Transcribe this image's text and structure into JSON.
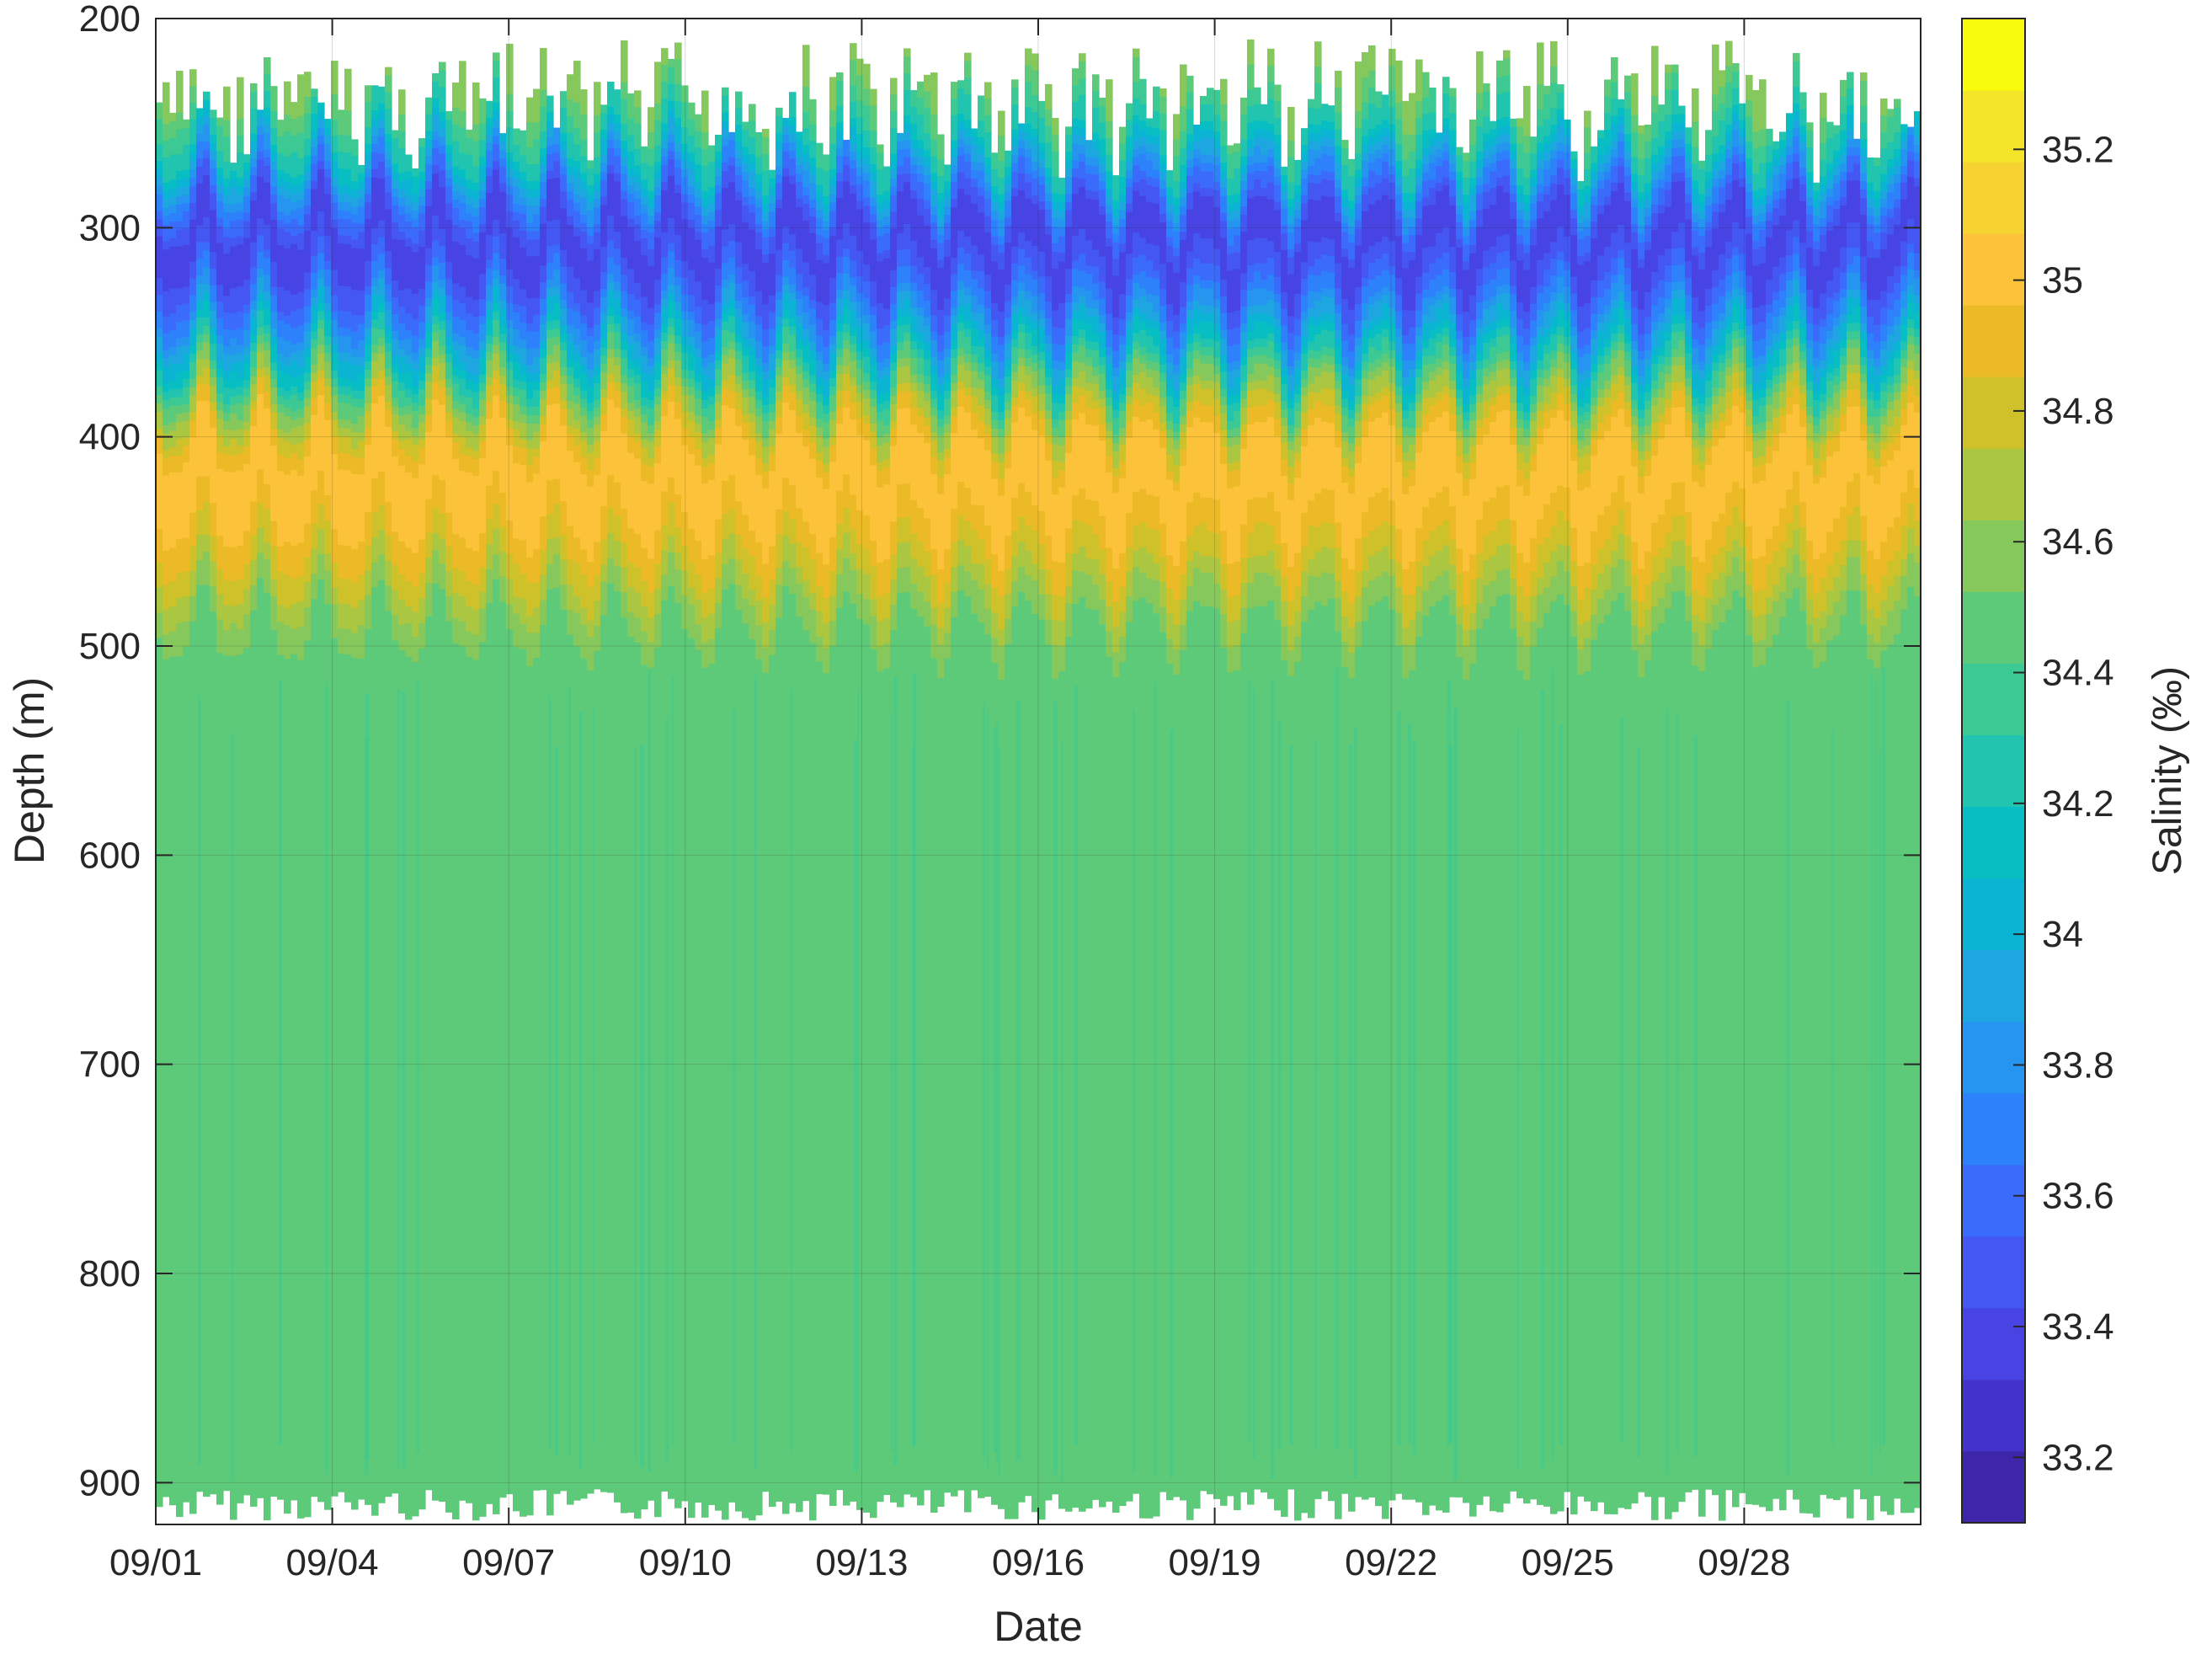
{
  "chart_data": {
    "type": "heatmap",
    "title": "",
    "xlabel": "Date",
    "ylabel": "Depth (m)",
    "colorbar_label": "Salinity (‰)",
    "x_range": [
      "09/01",
      "10/01"
    ],
    "x_ticks": [
      "09/01",
      "09/04",
      "09/07",
      "09/10",
      "09/13",
      "09/16",
      "09/19",
      "09/22",
      "09/25",
      "09/28"
    ],
    "x_tick_days": [
      1,
      4,
      7,
      10,
      13,
      16,
      19,
      22,
      25,
      28
    ],
    "y_range": [
      200,
      920
    ],
    "y_reversed": true,
    "y_ticks": [
      200,
      300,
      400,
      500,
      600,
      700,
      800,
      900
    ],
    "color_range": [
      33.1,
      35.4
    ],
    "color_ticks": [
      "33.2",
      "33.4",
      "33.6",
      "33.8",
      "34",
      "34.2",
      "34.4",
      "34.6",
      "34.8",
      "35",
      "35.2"
    ],
    "color_tick_values": [
      33.2,
      33.4,
      33.6,
      33.8,
      34.0,
      34.2,
      34.4,
      34.6,
      34.8,
      35.0,
      35.2
    ],
    "grid": true,
    "colormap": [
      "#3e26a8",
      "#4433ca",
      "#4744e3",
      "#4557f2",
      "#3b6bfb",
      "#2d81fb",
      "#2595f0",
      "#1ea6e1",
      "#0cb4d4",
      "#07bec3",
      "#21c4ae",
      "#3cc993",
      "#5dca79",
      "#86c85b",
      "#abc641",
      "#cec12a",
      "#ecba26",
      "#fcc33a",
      "#f7d332",
      "#f4e52b",
      "#f9fb0e"
    ],
    "water_column_profile": {
      "depth_m": [
        230,
        260,
        280,
        300,
        320,
        340,
        360,
        380,
        400,
        420,
        440,
        460,
        480,
        500,
        900
      ],
      "salinity": [
        34.55,
        34.2,
        33.7,
        33.35,
        33.45,
        33.75,
        34.15,
        34.6,
        34.95,
        35.05,
        34.95,
        34.8,
        34.6,
        34.45,
        34.45
      ]
    },
    "deep_layer_salinity": 34.45,
    "surface_edge_depth_range_m": [
      200,
      260
    ],
    "bottom_edge_depth_range_m": [
      900,
      920
    ]
  }
}
